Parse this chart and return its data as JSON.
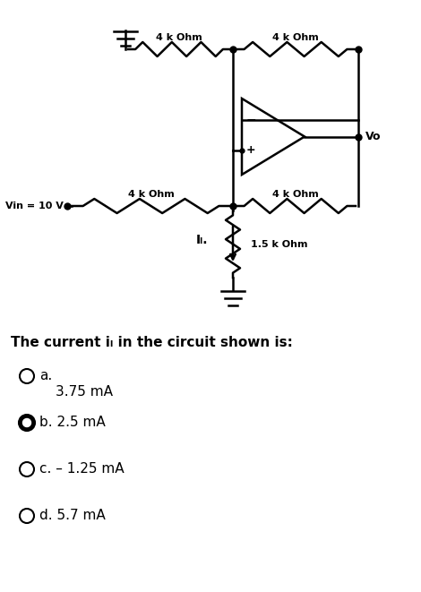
{
  "background_color": "#ffffff",
  "question_text": "The current iₗ in the circuit shown is:",
  "options": [
    {
      "label": "a.",
      "text": "3.75 mA",
      "selected": false,
      "text_offset": true
    },
    {
      "label": "b. ",
      "text": "2.5 mA",
      "selected": true,
      "text_offset": false
    },
    {
      "label": "c. ",
      "text": "– 1.25 mA",
      "selected": false,
      "text_offset": false
    },
    {
      "label": "d. ",
      "text": "5.7 mA",
      "selected": false,
      "text_offset": false
    }
  ],
  "vin_label": "Vin = 10 V",
  "vo_label": "Vo",
  "il_label": "Iₗ.",
  "r1_label": "4 k Ohm",
  "r2_label": "4 k Ohm",
  "r3_label": "4 k Ohm",
  "r4_label": "4 k Ohm",
  "r5_label": "1.5 k Ohm"
}
